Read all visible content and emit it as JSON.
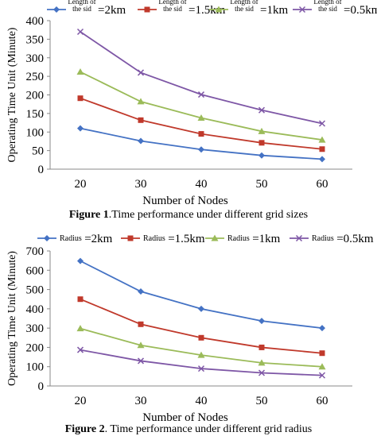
{
  "chart_data": [
    {
      "type": "line",
      "title": "",
      "xlabel": "Number of Nodes",
      "ylabel": "Operating Time Unit (Minute)",
      "x": [
        20,
        30,
        40,
        50,
        60
      ],
      "ylim": [
        0,
        400
      ],
      "yticks": [
        0,
        50,
        100,
        150,
        200,
        250,
        300,
        350,
        400
      ],
      "grid": false,
      "legend": "top",
      "series": [
        {
          "name": "Length of the sid=2km",
          "legend_small": "Length of the sid",
          "legend_big": "=2km",
          "values": [
            110,
            76,
            53,
            37,
            27
          ],
          "color": "#4472c4",
          "marker": "diamond"
        },
        {
          "name": "Length of the sid=1.5km",
          "legend_small": "Length of the sid",
          "legend_big": "=1.5km",
          "values": [
            191,
            132,
            95,
            71,
            54
          ],
          "color": "#c0392b",
          "marker": "square"
        },
        {
          "name": "Length of the sid=1km",
          "legend_small": "Length of the sid",
          "legend_big": "=1km",
          "values": [
            262,
            182,
            138,
            102,
            79
          ],
          "color": "#9bbb59",
          "marker": "triangle"
        },
        {
          "name": "Length of the sid=0.5km",
          "legend_small": "Length of the sid",
          "legend_big": "=0.5km",
          "values": [
            370,
            260,
            201,
            159,
            123
          ],
          "color": "#7e57a6",
          "marker": "x"
        }
      ]
    },
    {
      "type": "line",
      "title": "",
      "xlabel": "Number of Nodes",
      "ylabel": "Operating Time Unit (Minute)",
      "x": [
        20,
        30,
        40,
        50,
        60
      ],
      "ylim": [
        0,
        700
      ],
      "yticks": [
        0,
        100,
        200,
        300,
        400,
        500,
        600,
        700
      ],
      "grid": false,
      "legend": "top",
      "series": [
        {
          "name": "Radius=2km",
          "legend_small": "Radius",
          "legend_big": "=2km",
          "values": [
            648,
            490,
            400,
            337,
            300
          ],
          "color": "#4472c4",
          "marker": "diamond"
        },
        {
          "name": "Radius=1.5km",
          "legend_small": "Radius",
          "legend_big": "=1.5km",
          "values": [
            450,
            320,
            250,
            200,
            170
          ],
          "color": "#c0392b",
          "marker": "square"
        },
        {
          "name": "Radius=1km",
          "legend_small": "Radius",
          "legend_big": "=1km",
          "values": [
            298,
            211,
            160,
            120,
            100
          ],
          "color": "#9bbb59",
          "marker": "triangle"
        },
        {
          "name": "Radius=0.5km",
          "legend_small": "Radius",
          "legend_big": "=0.5km",
          "values": [
            187,
            130,
            90,
            68,
            55
          ],
          "color": "#7e57a6",
          "marker": "x"
        }
      ]
    }
  ],
  "captions": {
    "fig1_label": "Figure 1",
    "fig1_text": ".Time performance under different grid sizes",
    "fig2_label": "Figure 2",
    "fig2_text": ". Time performance under different grid radius"
  }
}
